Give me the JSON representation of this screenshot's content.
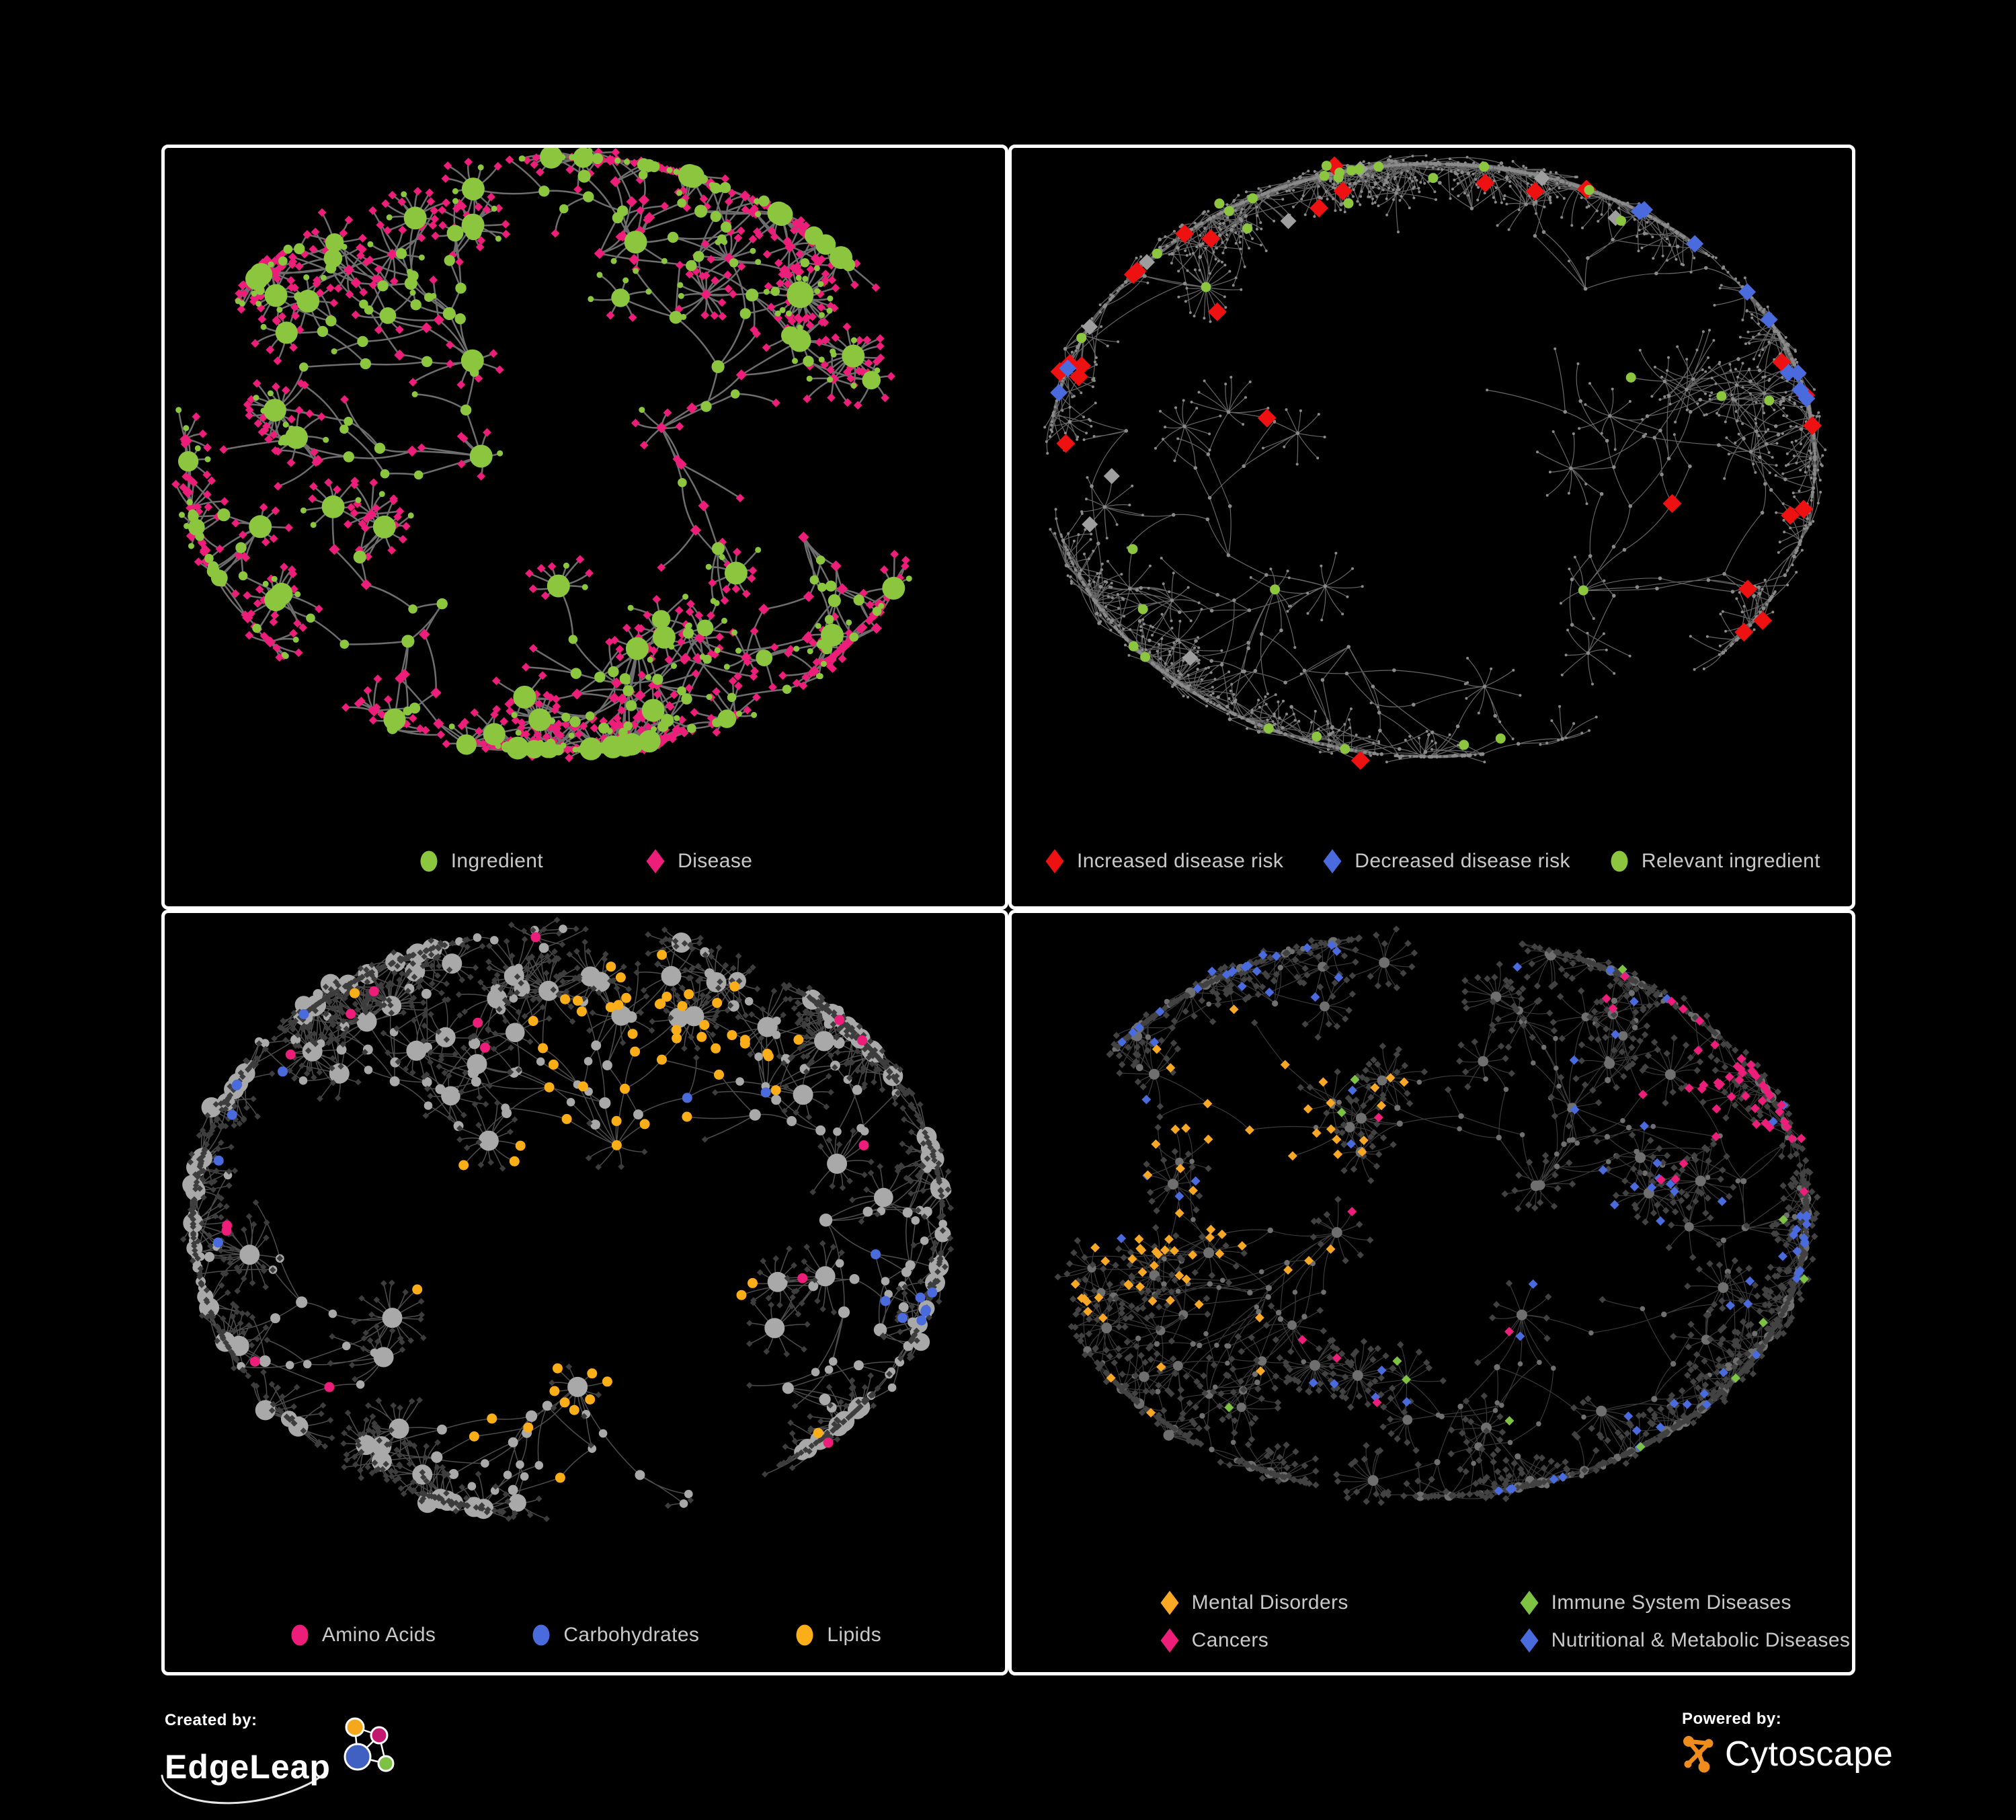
{
  "page": {
    "background": "#000000",
    "panel_border": "#ffffff",
    "legend_text_color": "#C9C9C9"
  },
  "branding": {
    "created_by_label": "Created by:",
    "created_by_name": "EdgeLeap",
    "powered_by_label": "Powered by:",
    "powered_by_name": "Cytoscape",
    "edgeleap_colors": {
      "orange": "#F5A81C",
      "magenta": "#C2186E",
      "blue": "#4161C2",
      "green": "#7DC243",
      "outline": "#ffffff"
    },
    "cytoscape_color": "#EE8C1E"
  },
  "chart_data": {
    "type": "network-figure",
    "description": "Four panels of the same ingredient-disease association network with different color mappings",
    "panels": [
      {
        "id": "ingredient-disease",
        "legend": [
          {
            "marker": "circle",
            "color": "#8CC63F",
            "label": "Ingredient"
          },
          {
            "marker": "diamond",
            "color": "#EC1E79",
            "label": "Disease"
          }
        ],
        "edge": {
          "color": "#7A7A7A",
          "width": 2.5,
          "opacity": 0.9
        },
        "gen": {
          "seed": 11,
          "hubs": 13,
          "depth": 4,
          "len": 74,
          "contP": 0.72,
          "burstP": 0.5,
          "burstMin": 5,
          "burstMax": 11,
          "burstLen": 36,
          "bigBurstP": 0.08,
          "cross": 40,
          "cx": 0.47,
          "cy": 0.45,
          "rx": 0.46,
          "ry": 0.45
        },
        "style": {
          "mode": "two-class",
          "ingredient_color": "#8CC63F",
          "disease_color": "#EC1E79",
          "interior_ingredient_p": 0.6,
          "leaf_disease_p": 0.78,
          "disease_size_interior": 8.2,
          "disease_size_leaf": 6.4
        }
      },
      {
        "id": "disease-risk",
        "legend": [
          {
            "marker": "diamond",
            "color": "#EE1111",
            "label": "Increased disease risk"
          },
          {
            "marker": "diamond",
            "color": "#4A6BDD",
            "label": "Decreased disease risk"
          },
          {
            "marker": "circle",
            "color": "#8CC63F",
            "label": "Relevant ingredient"
          }
        ],
        "edge": {
          "color": "#787878",
          "width": 1.2,
          "opacity": 0.85
        },
        "gen": {
          "seed": 23,
          "hubs": 16,
          "depth": 5,
          "len": 86,
          "contP": 0.66,
          "burstP": 0.45,
          "burstMin": 5,
          "burstMax": 10,
          "burstLen": 42,
          "bigBurstP": 0.1,
          "cross": 24,
          "cx": 0.5,
          "cy": 0.46,
          "rx": 0.47,
          "ry": 0.45
        },
        "style": {
          "mode": "highlight",
          "base_color": "#8A8A8A",
          "leaf_r": 2.0,
          "interior_r": 2.8,
          "marks": [
            {
              "key": "increased",
              "shape": "diamond",
              "color": "#EE1111",
              "size": 14,
              "n": 27,
              "focals": [
                [
                  0.5,
                  0.36
                ],
                [
                  0.68,
                  0.58
                ],
                [
                  0.3,
                  0.33
                ]
              ],
              "sigma": 0.16,
              "gain": 0.75
            },
            {
              "key": "unchanged",
              "shape": "diamond",
              "color": "#9E9E9E",
              "size": 12,
              "n": 9,
              "focals": [
                [
                  0.42,
                  0.42
                ],
                [
                  0.2,
                  0.35
                ]
              ],
              "sigma": 0.2,
              "gain": 0.5
            },
            {
              "key": "decreased",
              "shape": "diamond",
              "color": "#4A6BDD",
              "size": 13,
              "n": 11,
              "focals": [
                [
                  0.17,
                  0.4
                ],
                [
                  0.84,
                  0.25
                ]
              ],
              "sigma": 0.08,
              "gain": 0.9
            },
            {
              "key": "relevant",
              "shape": "circle",
              "color": "#8CC63F",
              "size": 7.5,
              "n": 33,
              "focals": [
                [
                  0.45,
                  0.38
                ],
                [
                  0.25,
                  0.3
                ],
                [
                  0.6,
                  0.55
                ]
              ],
              "sigma": 0.22,
              "gain": 0.7
            }
          ]
        }
      },
      {
        "id": "ingredient-classes",
        "legend": [
          {
            "marker": "circle",
            "color": "#EC1E79",
            "label": "Amino Acids"
          },
          {
            "marker": "circle",
            "color": "#4A6BDD",
            "label": "Carbohydrates"
          },
          {
            "marker": "circle",
            "color": "#FBAE17",
            "label": "Lipids"
          }
        ],
        "edge": {
          "color": "#8D8D8D",
          "width": 1.5,
          "opacity": 0.55
        },
        "gen": {
          "seed": 37,
          "hubs": 14,
          "depth": 4,
          "len": 78,
          "contP": 0.7,
          "burstP": 0.52,
          "burstMin": 6,
          "burstMax": 14,
          "burstLen": 40,
          "bigBurstP": 0.18,
          "cross": 24,
          "cx": 0.48,
          "cy": 0.46,
          "rx": 0.46,
          "ry": 0.45
        },
        "style": {
          "mode": "classes",
          "leaf_shape": "diamond",
          "leaf_color": "#3D3D3D",
          "leaf_size": 4.8,
          "interior_shape": "circle",
          "interior_color": "#A9A9A9",
          "mark_shape": "circle",
          "marks": [
            {
              "key": "lipids",
              "shape": "circle",
              "color": "#FBAE17",
              "size": 7.5,
              "n": 62,
              "focals": [
                [
                  0.56,
                  0.27
                ],
                [
                  0.42,
                  0.5
                ],
                [
                  0.52,
                  0.62
                ]
              ],
              "sigma": 0.09,
              "gain": 0.85
            },
            {
              "key": "carbohydrates",
              "shape": "circle",
              "color": "#4A6BDD",
              "size": 7.5,
              "n": 17,
              "focals": [
                [
                  0.6,
                  0.28
                ],
                [
                  0.08,
                  0.3
                ],
                [
                  0.9,
                  0.6
                ]
              ],
              "sigma": 0.07,
              "gain": 0.7
            },
            {
              "key": "amino-acids",
              "shape": "circle",
              "color": "#EC1E79",
              "size": 7.5,
              "n": 15,
              "focals": [
                [
                  0.3,
                  0.2
                ],
                [
                  0.15,
                  0.6
                ],
                [
                  0.55,
                  0.8
                ],
                [
                  0.85,
                  0.35
                ]
              ],
              "sigma": 0.15,
              "gain": 0.35
            }
          ]
        }
      },
      {
        "id": "disease-categories",
        "legend": [
          {
            "marker": "diamond",
            "color": "#F9A825",
            "label": "Mental Disorders"
          },
          {
            "marker": "diamond",
            "color": "#7DC242",
            "label": "Immune System Diseases"
          },
          {
            "marker": "diamond",
            "color": "#EC1E79",
            "label": "Cancers"
          },
          {
            "marker": "diamond",
            "color": "#4A6BDD",
            "label": "Nutritional & Metabolic Diseases"
          }
        ],
        "edge": {
          "color": "#757575",
          "width": 1.15,
          "opacity": 0.5
        },
        "gen": {
          "seed": 53,
          "hubs": 15,
          "depth": 4,
          "len": 80,
          "contP": 0.7,
          "burstP": 0.52,
          "burstMin": 6,
          "burstMax": 12,
          "burstLen": 38,
          "bigBurstP": 0.12,
          "cross": 26,
          "cx": 0.49,
          "cy": 0.47,
          "rx": 0.47,
          "ry": 0.45
        },
        "style": {
          "mode": "classes",
          "leaf_shape": "diamond",
          "leaf_color": "#424242",
          "leaf_size": 5.2,
          "interior_shape": "circle",
          "interior_color": "#6F6F6F",
          "mark_shape": "diamond",
          "marks": [
            {
              "key": "mental-disorders",
              "shape": "diamond",
              "color": "#F9A825",
              "size": 7,
              "n": 70,
              "focals": [
                [
                  0.2,
                  0.52
                ],
                [
                  0.3,
                  0.35
                ]
              ],
              "sigma": 0.085,
              "gain": 1.0
            },
            {
              "key": "cancers",
              "shape": "diamond",
              "color": "#EC1E79",
              "size": 7,
              "n": 55,
              "focals": [
                [
                  0.46,
                  0.55
                ],
                [
                  0.88,
                  0.27
                ]
              ],
              "sigma": 0.09,
              "gain": 0.9
            },
            {
              "key": "nutritional-metabolic",
              "shape": "diamond",
              "color": "#4A6BDD",
              "size": 7,
              "n": 90,
              "focals": [
                [
                  0.68,
                  0.38
                ],
                [
                  0.3,
                  0.12
                ],
                [
                  0.58,
                  0.68
                ],
                [
                  0.88,
                  0.45
                ],
                [
                  0.2,
                  0.3
                ]
              ],
              "sigma": 0.16,
              "gain": 0.55
            },
            {
              "key": "immune-system",
              "shape": "diamond",
              "color": "#7DC242",
              "size": 7,
              "n": 12,
              "focals": [
                [
                  0.5,
                  0.5
                ]
              ],
              "sigma": 0.5,
              "gain": 0.2
            }
          ]
        }
      }
    ]
  }
}
